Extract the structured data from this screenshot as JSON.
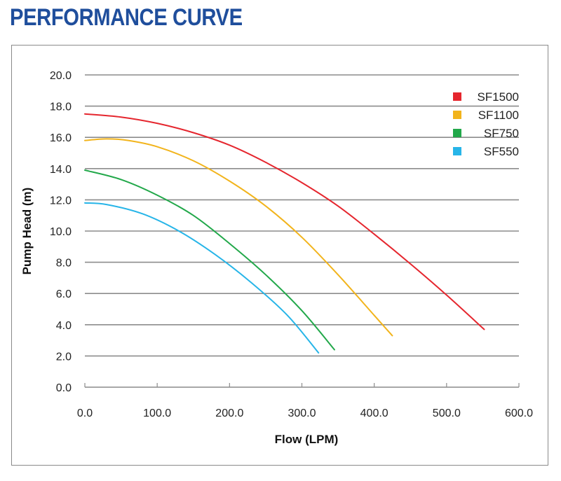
{
  "page": {
    "title": "PERFORMANCE CURVE"
  },
  "colors": {
    "title": "#1f4e9c",
    "grid": "#8c8c8c",
    "axis_text": "#222222",
    "frame": "#8a8a8a"
  },
  "chart_data": {
    "type": "line",
    "title": "",
    "xlabel": "Flow (LPM)",
    "ylabel": "Pump Head (m)",
    "xlim": [
      0,
      600
    ],
    "ylim": [
      0,
      20
    ],
    "x_ticks": [
      0,
      100,
      200,
      300,
      400,
      500,
      600
    ],
    "x_tick_labels": [
      "0.0",
      "100.0",
      "200.0",
      "300.0",
      "400.0",
      "500.0",
      "600.0"
    ],
    "y_ticks": [
      0,
      2,
      4,
      6,
      8,
      10,
      12,
      14,
      16,
      18,
      20
    ],
    "y_tick_labels": [
      "0.0",
      "2.0",
      "4.0",
      "6.0",
      "8.0",
      "10.0",
      "12.0",
      "14.0",
      "16.0",
      "18.0",
      "20.0"
    ],
    "grid": "horizontal",
    "legend_position": "top-right",
    "series": [
      {
        "name": "SF1500",
        "color": "#e5262e",
        "x": [
          0,
          50,
          100,
          150,
          200,
          250,
          300,
          350,
          400,
          450,
          500,
          552
        ],
        "y": [
          17.5,
          17.3,
          16.9,
          16.3,
          15.5,
          14.4,
          13.1,
          11.6,
          9.8,
          7.9,
          5.9,
          3.7
        ]
      },
      {
        "name": "SF1100",
        "color": "#f2b41c",
        "x": [
          0,
          30,
          60,
          100,
          150,
          200,
          250,
          300,
          350,
          400,
          425
        ],
        "y": [
          15.8,
          15.9,
          15.8,
          15.4,
          14.5,
          13.2,
          11.6,
          9.6,
          7.2,
          4.6,
          3.3
        ]
      },
      {
        "name": "SF750",
        "color": "#22a84a",
        "x": [
          0,
          50,
          100,
          150,
          200,
          250,
          300,
          345
        ],
        "y": [
          13.9,
          13.3,
          12.3,
          11.0,
          9.2,
          7.2,
          4.9,
          2.4
        ]
      },
      {
        "name": "SF550",
        "color": "#27b5e8",
        "x": [
          0,
          30,
          80,
          130,
          180,
          230,
          280,
          323
        ],
        "y": [
          11.8,
          11.7,
          11.1,
          10.0,
          8.5,
          6.7,
          4.6,
          2.2
        ]
      }
    ]
  }
}
